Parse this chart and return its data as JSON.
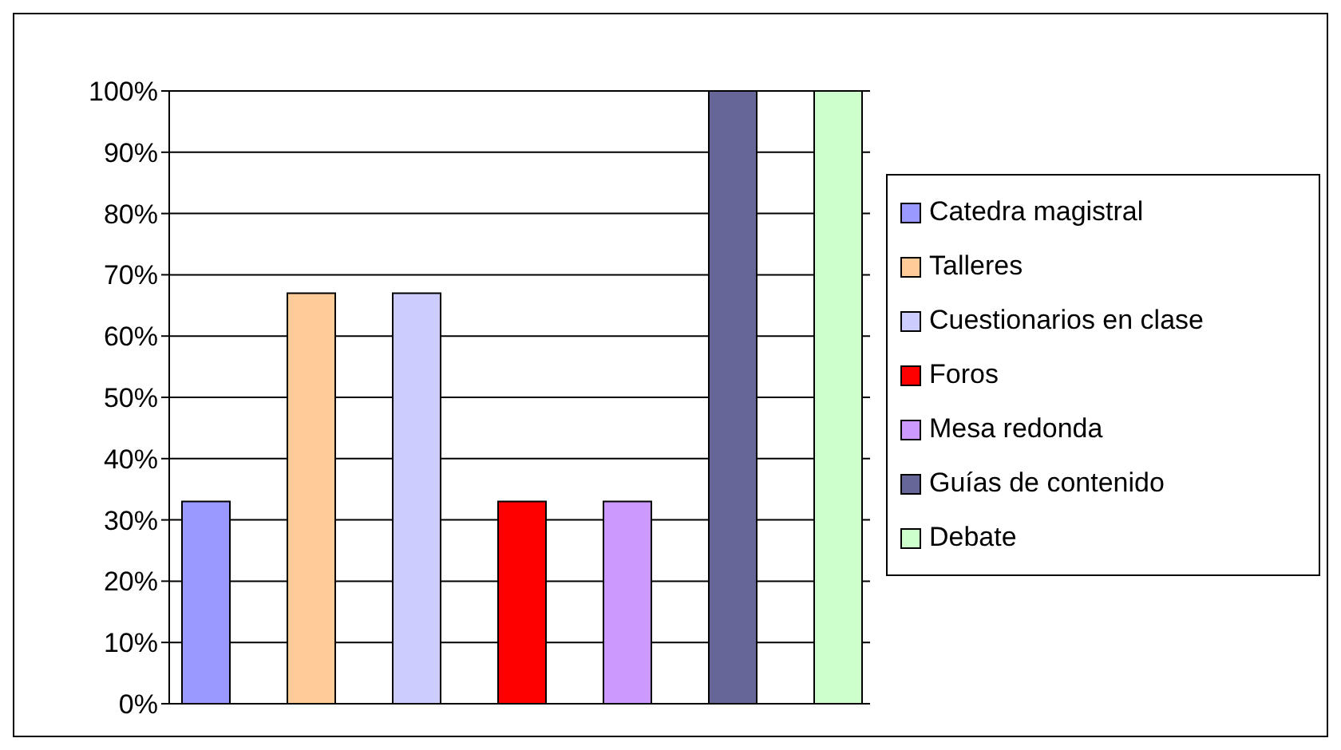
{
  "chart_data": {
    "type": "bar",
    "categories": [
      null
    ],
    "series": [
      {
        "name": "Catedra magistral",
        "color": "#9999ff",
        "values": [
          33
        ]
      },
      {
        "name": "Talleres",
        "color": "#ffcc99",
        "values": [
          67
        ]
      },
      {
        "name": "Cuestionarios en clase",
        "color": "#ccccff",
        "values": [
          67
        ]
      },
      {
        "name": "Foros",
        "color": "#ff0000",
        "values": [
          33
        ]
      },
      {
        "name": "Mesa redonda",
        "color": "#cc99ff",
        "values": [
          33
        ]
      },
      {
        "name": "Guías de contenido",
        "color": "#666699",
        "values": [
          100
        ]
      },
      {
        "name": "Debate",
        "color": "#ccffcc",
        "values": [
          100
        ]
      }
    ],
    "ylim": [
      0,
      100
    ],
    "yticks": [
      {
        "value": 0,
        "label": "0%"
      },
      {
        "value": 10,
        "label": "10%"
      },
      {
        "value": 20,
        "label": "20%"
      },
      {
        "value": 30,
        "label": "30%"
      },
      {
        "value": 40,
        "label": "40%"
      },
      {
        "value": 50,
        "label": "50%"
      },
      {
        "value": 60,
        "label": "60%"
      },
      {
        "value": 70,
        "label": "70%"
      },
      {
        "value": 80,
        "label": "80%"
      },
      {
        "value": 90,
        "label": "90%"
      },
      {
        "value": 100,
        "label": "100%"
      }
    ],
    "grid": "y",
    "legend": "right",
    "tick_labels": "y"
  }
}
